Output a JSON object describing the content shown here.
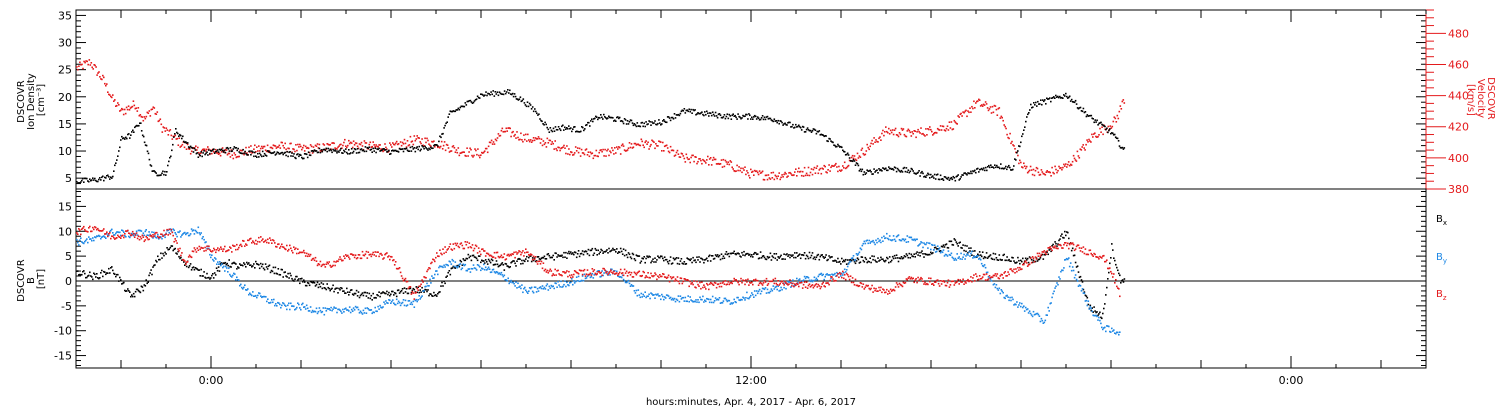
{
  "chart_data": [
    {
      "type": "scatter",
      "panel": "top",
      "ylabel": "DSCOVR Ion Density [cm⁻³]",
      "ylabel_lines": [
        "DSCOVR",
        "Ion Density",
        "[cm⁻³]"
      ],
      "y2label": "DSCOVR Velocity [km/s]",
      "y2label_lines": [
        "DSCOVR",
        "Velocity",
        "[km/s]"
      ],
      "ylim": [
        3,
        36
      ],
      "yticks": [
        5,
        10,
        15,
        20,
        25,
        30,
        35
      ],
      "y2lim": [
        380,
        495
      ],
      "y2ticks": [
        380,
        400,
        420,
        440,
        460,
        480
      ],
      "xlim": [
        -3.0,
        27.0
      ],
      "colors": {
        "density": "#000000",
        "velocity": "#e41a1c"
      },
      "series": [
        {
          "axis": "left",
          "color": "#000000",
          "x": [
            -3.0,
            -2.6,
            -2.2,
            -2.0,
            -1.8,
            -1.6,
            -1.3,
            -1.0,
            -0.8,
            -0.6,
            -0.3,
            0.0,
            0.5,
            1.0,
            1.5,
            2.0,
            2.5,
            3.0,
            3.5,
            4.0,
            4.5,
            5.0,
            5.3,
            5.7,
            6.0,
            6.3,
            6.6,
            6.9,
            7.2,
            7.5,
            7.8,
            8.2,
            8.6,
            9.0,
            9.5,
            10.0,
            10.5,
            11.0,
            11.5,
            12.0,
            12.5,
            13.0,
            13.5,
            14.0,
            14.5,
            15.0,
            15.5,
            16.0,
            16.5,
            17.0,
            17.4,
            17.8,
            18.2,
            18.6,
            19.0,
            19.5,
            20.0,
            20.3
          ],
          "y": [
            4.5,
            4.8,
            5.5,
            12.5,
            13.0,
            15.5,
            6.0,
            6.2,
            14.0,
            12.0,
            9.5,
            10.0,
            10.5,
            9.5,
            10.0,
            9.0,
            10.5,
            10.0,
            10.5,
            10.0,
            10.5,
            11.0,
            17.0,
            19.0,
            20.5,
            20.8,
            21.0,
            19.5,
            17.5,
            14.0,
            14.5,
            14.0,
            16.5,
            16.0,
            15.0,
            15.5,
            17.5,
            17.0,
            16.5,
            16.5,
            16.0,
            14.5,
            13.5,
            10.5,
            6.0,
            7.0,
            6.5,
            5.5,
            5.0,
            6.5,
            7.5,
            7.0,
            18.5,
            19.5,
            20.5,
            16.5,
            13.5,
            10.0
          ]
        },
        {
          "axis": "right",
          "color": "#e41a1c",
          "x": [
            -3.0,
            -2.7,
            -2.4,
            -2.2,
            -2.0,
            -1.7,
            -1.5,
            -1.3,
            -1.1,
            -0.9,
            -0.7,
            -0.4,
            0.0,
            0.5,
            1.0,
            1.5,
            2.0,
            2.5,
            3.0,
            3.5,
            4.0,
            4.5,
            5.0,
            5.5,
            6.0,
            6.5,
            7.0,
            7.5,
            8.0,
            8.5,
            9.0,
            9.5,
            10.0,
            10.5,
            11.0,
            11.5,
            12.0,
            12.5,
            13.0,
            13.5,
            14.0,
            14.5,
            15.0,
            15.5,
            16.0,
            16.5,
            17.0,
            17.5,
            18.0,
            18.5,
            19.0,
            19.3,
            19.6,
            19.9,
            20.1,
            20.3
          ],
          "y": [
            458,
            462,
            450,
            438,
            430,
            435,
            425,
            433,
            420,
            415,
            410,
            405,
            405,
            403,
            406,
            408,
            406,
            407,
            410,
            408,
            407,
            412,
            410,
            405,
            403,
            418,
            413,
            410,
            405,
            403,
            405,
            410,
            408,
            400,
            399,
            396,
            390,
            389,
            391,
            393,
            395,
            405,
            418,
            416,
            418,
            422,
            436,
            430,
            395,
            390,
            395,
            404,
            415,
            420,
            425,
            440
          ]
        }
      ]
    },
    {
      "type": "scatter",
      "panel": "bottom",
      "ylabel": "DSCOVR B [nT]",
      "ylabel_lines": [
        "DSCOVR",
        "B",
        "[nT]"
      ],
      "ylim": [
        -17.5,
        18.5
      ],
      "yticks": [
        -15,
        -10,
        -5,
        0,
        5,
        10,
        15
      ],
      "xlim": [
        -3.0,
        27.0
      ],
      "legend": [
        "Bx",
        "By",
        "Bz"
      ],
      "series": [
        {
          "name": "Bx",
          "color": "#000000",
          "x": [
            -3.0,
            -2.6,
            -2.2,
            -1.8,
            -1.5,
            -1.2,
            -0.9,
            -0.6,
            -0.3,
            0.0,
            0.3,
            0.6,
            1.0,
            1.5,
            2.0,
            2.5,
            3.0,
            3.5,
            4.0,
            4.5,
            5.0,
            5.3,
            5.7,
            6.0,
            6.5,
            7.0,
            7.5,
            8.0,
            8.5,
            9.0,
            9.5,
            10.0,
            10.5,
            11.0,
            11.5,
            12.0,
            12.5,
            13.0,
            13.5,
            14.0,
            14.5,
            15.0,
            15.5,
            16.0,
            16.5,
            17.0,
            17.5,
            18.0,
            18.5,
            19.0,
            19.5,
            19.8,
            20.0,
            20.2,
            20.3
          ],
          "y": [
            2.0,
            1.0,
            2.5,
            -3.0,
            -1.0,
            4.5,
            7.0,
            4.0,
            2.0,
            1.0,
            4.0,
            3.0,
            3.5,
            2.0,
            0.0,
            -1.0,
            -2.0,
            -3.0,
            -2.5,
            -1.5,
            -2.5,
            2.0,
            5.0,
            4.5,
            3.0,
            4.5,
            5.0,
            5.5,
            6.0,
            6.5,
            4.5,
            4.5,
            4.0,
            4.5,
            5.5,
            5.5,
            5.0,
            5.5,
            5.0,
            4.0,
            4.5,
            4.5,
            5.0,
            6.0,
            8.0,
            5.5,
            5.0,
            4.0,
            5.0,
            10.0,
            -5.0,
            -7.0,
            7.0,
            0.0,
            1.0
          ]
        },
        {
          "name": "By",
          "color": "#1e88e5",
          "x": [
            -3.0,
            -2.6,
            -2.2,
            -1.8,
            -1.5,
            -1.2,
            -0.9,
            -0.6,
            -0.3,
            0.0,
            0.4,
            0.8,
            1.2,
            1.6,
            2.0,
            2.5,
            3.0,
            3.5,
            4.0,
            4.5,
            5.0,
            5.3,
            5.7,
            6.0,
            6.5,
            7.0,
            7.5,
            8.0,
            8.5,
            9.0,
            9.5,
            10.0,
            10.5,
            11.0,
            11.5,
            12.0,
            12.5,
            13.0,
            13.5,
            14.0,
            14.5,
            15.0,
            15.5,
            16.0,
            16.5,
            17.0,
            17.5,
            18.0,
            18.5,
            19.0,
            19.5,
            19.8,
            20.0,
            20.2
          ],
          "y": [
            8.0,
            8.5,
            10.0,
            9.5,
            10.0,
            9.0,
            10.0,
            9.5,
            10.5,
            5.0,
            2.0,
            -2.0,
            -3.5,
            -5.0,
            -5.0,
            -6.0,
            -5.5,
            -6.0,
            -4.0,
            -4.5,
            2.0,
            4.0,
            2.5,
            3.0,
            1.0,
            -2.0,
            -1.0,
            0.0,
            1.5,
            2.0,
            -2.5,
            -3.0,
            -3.5,
            -3.5,
            -4.0,
            -2.5,
            -1.5,
            0.0,
            1.0,
            1.5,
            7.5,
            9.0,
            8.5,
            7.0,
            5.0,
            5.5,
            -2.0,
            -5.0,
            -8.0,
            5.0,
            -5.0,
            -9.0,
            -10.0,
            -10.0
          ]
        },
        {
          "name": "Bz",
          "color": "#e41a1c",
          "x": [
            -3.0,
            -2.6,
            -2.2,
            -1.8,
            -1.5,
            -1.2,
            -0.9,
            -0.6,
            -0.3,
            0.0,
            0.4,
            0.8,
            1.2,
            1.6,
            2.0,
            2.5,
            3.0,
            3.5,
            4.0,
            4.5,
            5.0,
            5.3,
            5.7,
            6.0,
            6.5,
            7.0,
            7.5,
            8.0,
            8.5,
            9.0,
            9.5,
            10.0,
            10.5,
            11.0,
            11.5,
            12.0,
            12.5,
            13.0,
            13.5,
            14.0,
            14.5,
            15.0,
            15.5,
            16.0,
            16.5,
            17.0,
            17.5,
            18.0,
            18.5,
            19.0,
            19.5,
            19.8,
            20.0,
            20.2
          ],
          "y": [
            10.0,
            11.0,
            9.0,
            10.0,
            8.5,
            9.5,
            10.0,
            4.0,
            7.0,
            6.5,
            6.5,
            8.0,
            8.5,
            7.0,
            6.0,
            3.0,
            5.0,
            5.5,
            5.0,
            -3.0,
            5.5,
            7.0,
            7.5,
            6.0,
            5.0,
            6.0,
            2.0,
            1.5,
            2.0,
            2.0,
            1.5,
            1.0,
            0.0,
            -1.0,
            0.0,
            0.0,
            0.0,
            -0.5,
            -1.0,
            1.5,
            -1.0,
            -2.0,
            0.5,
            0.0,
            -0.5,
            1.0,
            1.0,
            3.0,
            6.0,
            7.5,
            6.0,
            5.0,
            2.0,
            -3.0
          ]
        }
      ]
    }
  ],
  "x_axis": {
    "label": "hours:minutes, Apr.  4, 2017 - Apr.  6, 2017",
    "tick_labels": [
      {
        "x": 0,
        "label": "0:00"
      },
      {
        "x": 12,
        "label": "12:00"
      },
      {
        "x": 24,
        "label": "0:00"
      }
    ]
  },
  "legend_labels": [
    {
      "text": "B",
      "sub": "x",
      "color": "#000000"
    },
    {
      "text": "B",
      "sub": "y",
      "color": "#1e88e5"
    },
    {
      "text": "B",
      "sub": "z",
      "color": "#e41a1c"
    }
  ]
}
